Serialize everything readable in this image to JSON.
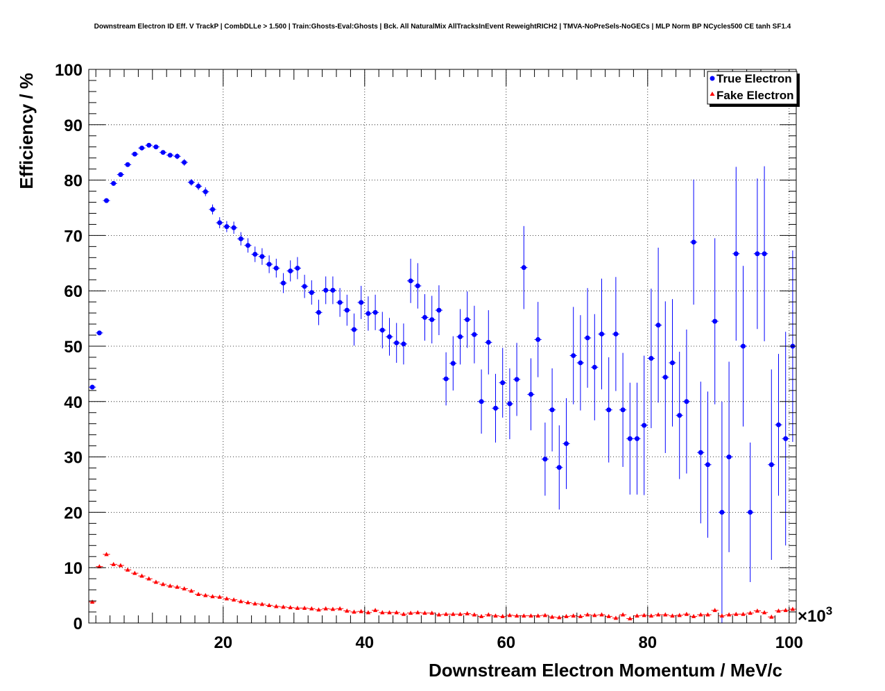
{
  "chart_data": {
    "type": "scatter",
    "title": "Downstream Electron ID Eff. V TrackP | CombDLLe > 1.500 | Train:Ghosts-Eval:Ghosts | Bck. All NaturalMix AllTracksInEvent ReweightRICH2 | TMVA-NoPreSels-NoGECs | MLP Norm BP NCycles500 CE tanh SF1.4",
    "xlabel": "Downstream Electron Momentum / MeV/c",
    "ylabel": "Efficiency / %",
    "x_multiplier_label": "×10",
    "x_multiplier_exp": "3",
    "xlim": [
      1,
      101
    ],
    "ylim": [
      0,
      100
    ],
    "grid": true,
    "legend_position": "top-right",
    "x_ticks": [
      20,
      40,
      60,
      80,
      100
    ],
    "y_ticks": [
      0,
      10,
      20,
      30,
      40,
      50,
      60,
      70,
      80,
      90,
      100
    ],
    "x": [
      1.5,
      2.5,
      3.5,
      4.5,
      5.5,
      6.5,
      7.5,
      8.5,
      9.5,
      10.5,
      11.5,
      12.5,
      13.5,
      14.5,
      15.5,
      16.5,
      17.5,
      18.5,
      19.5,
      20.5,
      21.5,
      22.5,
      23.5,
      24.5,
      25.5,
      26.5,
      27.5,
      28.5,
      29.5,
      30.5,
      31.5,
      32.5,
      33.5,
      34.5,
      35.5,
      36.5,
      37.5,
      38.5,
      39.5,
      40.5,
      41.5,
      42.5,
      43.5,
      44.5,
      45.5,
      46.5,
      47.5,
      48.5,
      49.5,
      50.5,
      51.5,
      52.5,
      53.5,
      54.5,
      55.5,
      56.5,
      57.5,
      58.5,
      59.5,
      60.5,
      61.5,
      62.5,
      63.5,
      64.5,
      65.5,
      66.5,
      67.5,
      68.5,
      69.5,
      70.5,
      71.5,
      72.5,
      73.5,
      74.5,
      75.5,
      76.5,
      77.5,
      78.5,
      79.5,
      80.5,
      81.5,
      82.5,
      83.5,
      84.5,
      85.5,
      86.5,
      87.5,
      88.5,
      89.5,
      90.5,
      91.5,
      92.5,
      93.5,
      94.5,
      95.5,
      96.5,
      97.5,
      98.5,
      99.5,
      100.5
    ],
    "series": [
      {
        "name": "True Electron",
        "color": "#0000ff",
        "marker": "circle",
        "values": [
          42.6,
          52.4,
          76.3,
          79.4,
          81.0,
          82.8,
          84.7,
          85.8,
          86.3,
          86.0,
          85.0,
          84.5,
          84.3,
          83.2,
          79.6,
          78.9,
          77.9,
          74.7,
          72.3,
          71.6,
          71.4,
          69.4,
          68.2,
          66.6,
          66.2,
          64.8,
          64.1,
          61.4,
          63.6,
          64.1,
          60.8,
          59.7,
          56.1,
          60.1,
          60.1,
          57.9,
          56.5,
          53.0,
          57.9,
          55.9,
          56.1,
          52.9,
          51.7,
          50.6,
          50.4,
          61.8,
          60.9,
          55.2,
          54.8,
          56.5,
          44.1,
          46.9,
          51.7,
          54.8,
          52.1,
          40.0,
          50.7,
          38.8,
          43.4,
          39.6,
          44.0,
          64.2,
          41.3,
          51.2,
          29.6,
          38.5,
          28.1,
          32.4,
          48.3,
          47.0,
          51.5,
          46.2,
          52.2,
          38.5,
          52.2,
          38.5,
          33.3,
          33.3,
          35.7,
          47.8,
          53.8,
          44.4,
          47.0,
          37.5,
          40.0,
          68.8,
          30.8,
          28.6,
          54.5,
          20.0,
          30.0,
          66.7,
          50.0,
          20.0,
          66.7,
          66.7,
          28.6,
          35.8,
          33.3,
          50.0
        ],
        "errors": [
          0.4,
          0.4,
          0.4,
          0.4,
          0.4,
          0.4,
          0.4,
          0.4,
          0.4,
          0.4,
          0.4,
          0.4,
          0.5,
          0.6,
          0.6,
          0.7,
          0.8,
          0.9,
          1.0,
          1.0,
          1.1,
          1.2,
          1.3,
          1.4,
          1.5,
          1.6,
          1.7,
          1.8,
          1.9,
          2.0,
          2.1,
          2.2,
          2.3,
          2.5,
          2.5,
          2.6,
          2.8,
          2.9,
          3.0,
          3.1,
          3.2,
          3.3,
          3.4,
          3.6,
          3.7,
          4.0,
          4.1,
          4.2,
          4.3,
          4.5,
          4.8,
          4.9,
          5.0,
          5.1,
          5.2,
          5.8,
          5.8,
          6.2,
          6.3,
          6.4,
          6.6,
          7.5,
          6.5,
          6.8,
          6.6,
          7.5,
          7.6,
          8.2,
          8.8,
          8.6,
          9.0,
          9.6,
          10.0,
          9.5,
          10.3,
          10.3,
          10.1,
          10.1,
          12.6,
          12.6,
          14.0,
          13.7,
          11.5,
          11.5,
          13.0,
          11.3,
          12.8,
          13.2,
          15.0,
          20.0,
          17.2,
          15.7,
          14.5,
          12.6,
          13.6,
          15.8,
          17.2,
          12.8,
          19.3,
          17.3
        ]
      },
      {
        "name": "Fake Electron",
        "color": "#ff0000",
        "marker": "triangle",
        "values": [
          3.8,
          10.2,
          12.4,
          10.6,
          10.4,
          9.6,
          9.0,
          8.5,
          8.0,
          7.4,
          7.0,
          6.7,
          6.5,
          6.2,
          5.8,
          5.2,
          5.0,
          4.8,
          4.7,
          4.4,
          4.2,
          3.9,
          3.7,
          3.5,
          3.4,
          3.2,
          3.0,
          2.9,
          2.8,
          2.7,
          2.7,
          2.6,
          2.4,
          2.6,
          2.5,
          2.6,
          2.2,
          2.0,
          2.1,
          1.9,
          2.3,
          1.9,
          1.9,
          1.9,
          1.6,
          1.8,
          1.9,
          1.8,
          1.8,
          1.5,
          1.6,
          1.6,
          1.6,
          1.7,
          1.5,
          1.2,
          1.5,
          1.3,
          1.2,
          1.4,
          1.3,
          1.3,
          1.3,
          1.3,
          1.4,
          1.1,
          1.0,
          1.2,
          1.3,
          1.2,
          1.5,
          1.4,
          1.5,
          1.2,
          0.9,
          1.5,
          0.8,
          1.3,
          1.4,
          1.3,
          1.5,
          1.5,
          1.3,
          1.4,
          1.6,
          1.2,
          1.5,
          1.5,
          2.3,
          1.3,
          1.5,
          1.6,
          1.6,
          1.8,
          2.2,
          1.9,
          1.1,
          2.2,
          2.3,
          2.5
        ]
      }
    ]
  }
}
